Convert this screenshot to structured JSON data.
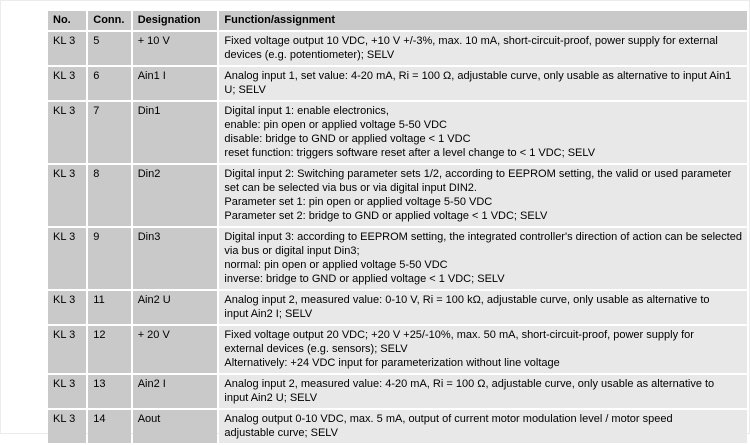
{
  "colors": {
    "cell_background_dark": "#c9c9c9",
    "cell_background_light": "#e8e8e8",
    "grid_gap": "#ffffff",
    "text": "#000000"
  },
  "table": {
    "columns": [
      "No.",
      "Conn.",
      "Designation",
      "Function/assignment"
    ],
    "rows": [
      {
        "no": "KL 3",
        "conn": "5",
        "designation": "+ 10 V",
        "function_lines": [
          "Fixed voltage output 10 VDC, +10 V +/-3%, max. 10 mA, short-circuit-proof, power supply for external",
          "devices (e.g. potentiometer); SELV"
        ]
      },
      {
        "no": "KL 3",
        "conn": "6",
        "designation": "Ain1 I",
        "function_lines": [
          "Analog input 1, set value: 4-20 mA, Ri = 100 Ω, adjustable curve, only usable as alternative to input Ain1",
          "U; SELV"
        ]
      },
      {
        "no": "KL 3",
        "conn": "7",
        "designation": "Din1",
        "function_lines": [
          "Digital input 1: enable electronics,",
          "enable: pin open or applied voltage 5-50 VDC",
          "disable: bridge to GND or applied voltage < 1 VDC",
          "reset function: triggers software reset after a level change to < 1 VDC; SELV"
        ]
      },
      {
        "no": "KL 3",
        "conn": "8",
        "designation": "Din2",
        "function_lines": [
          "Digital input 2: Switching parameter sets 1/2, according to EEPROM setting, the valid or used parameter",
          "set can be selected via bus or via digital input DIN2.",
          "Parameter set 1: pin open or applied voltage 5-50 VDC",
          "Parameter set 2: bridge to GND or applied voltage < 1 VDC; SELV"
        ]
      },
      {
        "no": "KL 3",
        "conn": "9",
        "designation": "Din3",
        "function_lines": [
          "Digital input 3: according to EEPROM setting, the integrated controller's direction of action can be selected",
          "via bus or digital input Din3;",
          "normal: pin open or applied voltage 5-50 VDC",
          "inverse: bridge to GND or applied voltage < 1 VDC; SELV"
        ]
      },
      {
        "no": "KL 3",
        "conn": "11",
        "designation": "Ain2 U",
        "function_lines": [
          "Analog input 2, measured value: 0-10 V, Ri = 100 kΩ, adjustable curve, only usable as alternative to",
          "input Ain2 I; SELV"
        ]
      },
      {
        "no": "KL 3",
        "conn": "12",
        "designation": "+ 20 V",
        "function_lines": [
          "Fixed voltage output 20 VDC; +20 V +25/-10%, max. 50 mA, short-circuit-proof, power supply for",
          "external devices (e.g. sensors); SELV",
          "Alternatively: +24 VDC input for parameterization without line voltage"
        ]
      },
      {
        "no": "KL 3",
        "conn": "13",
        "designation": "Ain2 I",
        "function_lines": [
          "Analog input 2, measured value: 4-20 mA, Ri = 100 Ω, adjustable curve, only usable as alternative to",
          "input Ain2 U; SELV"
        ]
      },
      {
        "no": "KL 3",
        "conn": "14",
        "designation": "Aout",
        "function_lines": [
          "Analog output 0-10 VDC, max. 5 mA, output of current motor modulation level / motor speed",
          "adjustable curve; SELV"
        ]
      }
    ]
  }
}
